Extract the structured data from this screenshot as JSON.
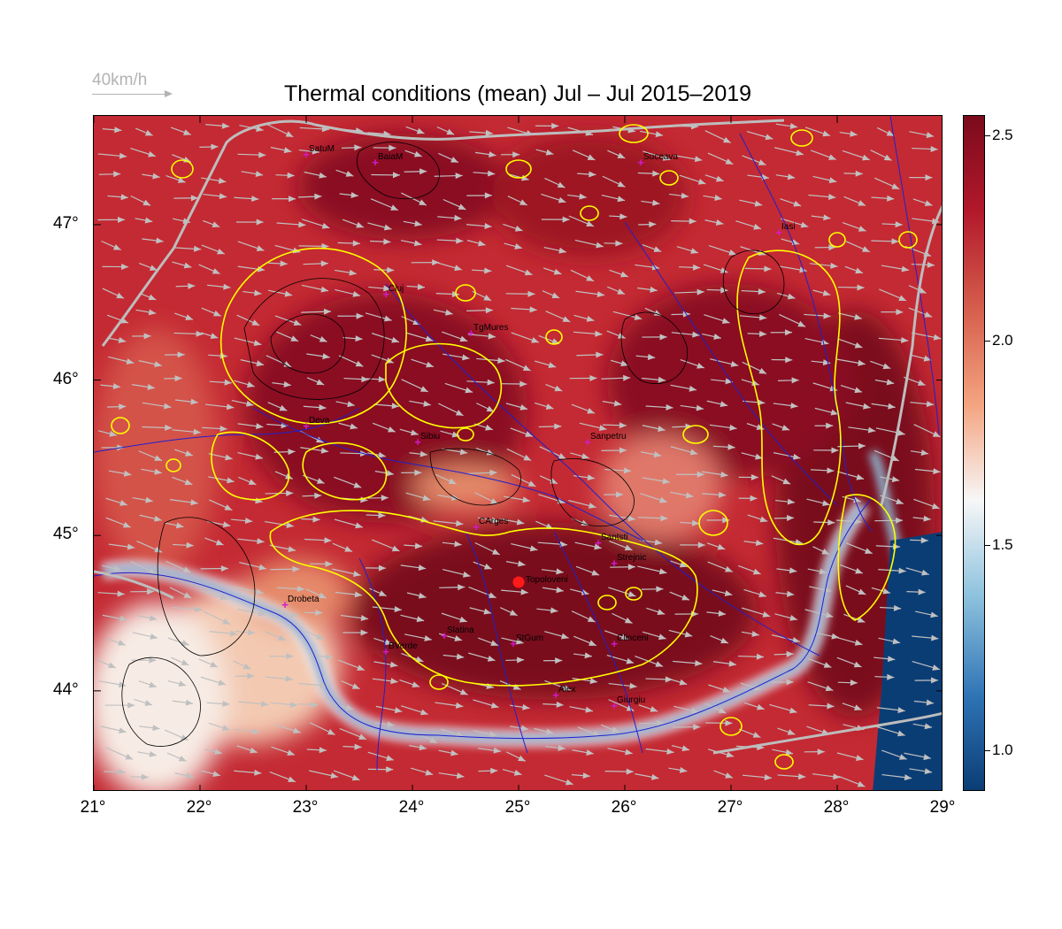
{
  "title": "Thermal conditions (mean) Jul – Jul  2015–2019",
  "wind_scale": {
    "label": "40km/h"
  },
  "colorbar": {
    "range": [
      0.9,
      2.55
    ],
    "ticks": [
      {
        "value": 1.0,
        "label": "1.0"
      },
      {
        "value": 1.5,
        "label": "1.5"
      },
      {
        "value": 2.0,
        "label": "2.0"
      },
      {
        "value": 2.5,
        "label": "2.5"
      }
    ],
    "colormap": [
      "#0b3d75",
      "#2f74b5",
      "#8fc3de",
      "#f7f7f7",
      "#f4a582",
      "#d6604d",
      "#b2182b",
      "#7a0b1c"
    ]
  },
  "axes": {
    "lon_range": [
      21,
      29
    ],
    "lat_range": [
      43.35,
      47.7
    ],
    "x_ticks": [
      "21°",
      "22°",
      "23°",
      "24°",
      "25°",
      "26°",
      "27°",
      "28°",
      "29°"
    ],
    "y_ticks": [
      {
        "lat": 47,
        "label": "47°"
      },
      {
        "lat": 46,
        "label": "46°"
      },
      {
        "lat": 45,
        "label": "45°"
      },
      {
        "lat": 44,
        "label": "44°"
      }
    ]
  },
  "cities": [
    {
      "name": "SatuM",
      "lon": 23.0,
      "lat": 47.45
    },
    {
      "name": "BaiaM",
      "lon": 23.65,
      "lat": 47.4
    },
    {
      "name": "Suceava",
      "lon": 26.15,
      "lat": 47.4
    },
    {
      "name": "Iasi",
      "lon": 27.45,
      "lat": 46.95
    },
    {
      "name": "Cluj",
      "lon": 23.75,
      "lat": 46.55
    },
    {
      "name": "TgMures",
      "lon": 24.55,
      "lat": 46.3
    },
    {
      "name": "Deva",
      "lon": 23.0,
      "lat": 45.7
    },
    {
      "name": "Sibiu",
      "lon": 24.05,
      "lat": 45.6
    },
    {
      "name": "Sanpetru",
      "lon": 25.65,
      "lat": 45.6
    },
    {
      "name": "CArges",
      "lon": 24.6,
      "lat": 45.05
    },
    {
      "name": "Santsti",
      "lon": 25.75,
      "lat": 44.95
    },
    {
      "name": "Strejnic",
      "lon": 25.9,
      "lat": 44.82
    },
    {
      "name": "Drobeta",
      "lon": 22.8,
      "lat": 44.55
    },
    {
      "name": "Slatina",
      "lon": 24.3,
      "lat": 44.35
    },
    {
      "name": "StGum",
      "lon": 24.95,
      "lat": 44.3
    },
    {
      "name": "Clinceni",
      "lon": 25.9,
      "lat": 44.3
    },
    {
      "name": "BVerde",
      "lon": 23.75,
      "lat": 44.25
    },
    {
      "name": "Alex",
      "lon": 25.35,
      "lat": 43.97
    },
    {
      "name": "Giurgiu",
      "lon": 25.9,
      "lat": 43.9
    }
  ],
  "highlight": {
    "name": "Topoloveni",
    "lon": 25.0,
    "lat": 44.7
  },
  "wind": {
    "direction_deg_from_east": -12,
    "speed_kmh": 40,
    "color": "#c0c0c0"
  },
  "colors": {
    "contour_yellow": "#ffff00",
    "river_blue": "#2020cc",
    "border_gray": "#bdbdbd",
    "marker": "#d21ad2",
    "highlight": "#ff1a1a"
  }
}
